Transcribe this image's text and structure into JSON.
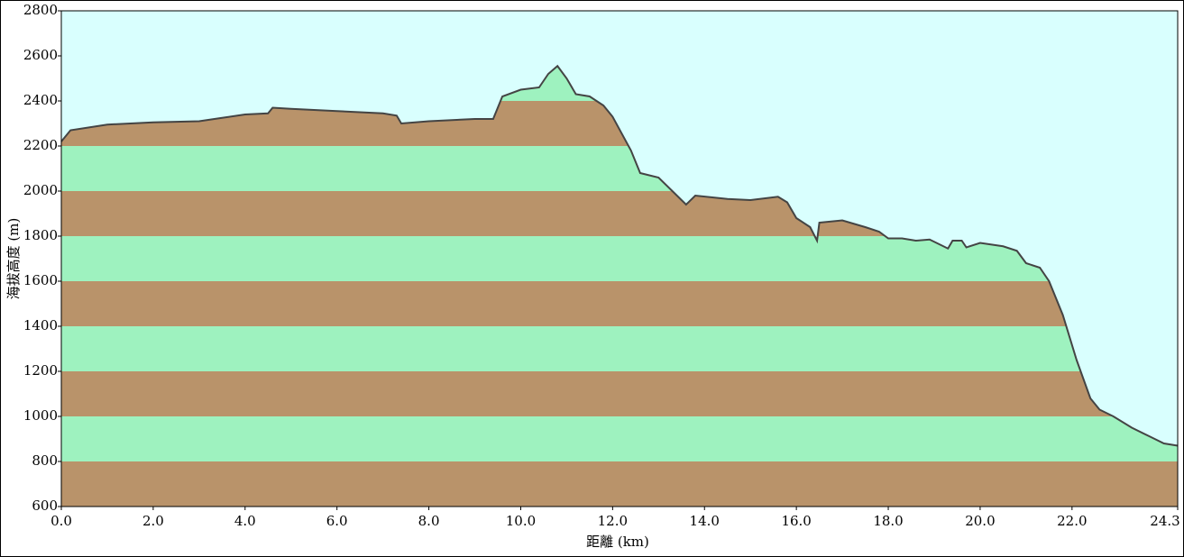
{
  "chart_data": {
    "type": "area",
    "x_label": "距離  (km)",
    "y_label": "海拔高度 (m)",
    "x": [
      0,
      0.2,
      1.0,
      2.0,
      3.0,
      3.5,
      4.0,
      4.5,
      4.6,
      5.0,
      6.0,
      7.0,
      7.3,
      7.4,
      8.0,
      9.0,
      9.4,
      9.6,
      10.0,
      10.4,
      10.6,
      10.8,
      11.0,
      11.2,
      11.5,
      11.8,
      12.0,
      12.4,
      12.6,
      13.0,
      13.3,
      13.6,
      13.8,
      14.5,
      15.0,
      15.6,
      15.8,
      16.0,
      16.3,
      16.45,
      16.5,
      17.0,
      17.5,
      17.8,
      18.0,
      18.3,
      18.6,
      18.9,
      19.3,
      19.4,
      19.6,
      19.7,
      20.0,
      20.5,
      20.8,
      21.0,
      21.3,
      21.5,
      21.8,
      22.1,
      22.4,
      22.6,
      22.9,
      23.3,
      23.7,
      24.0,
      24.3
    ],
    "series": [
      {
        "color": "#444444",
        "values": [
          2220,
          2270,
          2295,
          2305,
          2310,
          2325,
          2340,
          2345,
          2370,
          2365,
          2355,
          2345,
          2335,
          2300,
          2310,
          2320,
          2320,
          2420,
          2450,
          2460,
          2520,
          2555,
          2500,
          2430,
          2420,
          2380,
          2330,
          2180,
          2080,
          2060,
          2000,
          1940,
          1980,
          1965,
          1960,
          1975,
          1950,
          1880,
          1840,
          1780,
          1860,
          1870,
          1840,
          1820,
          1790,
          1790,
          1780,
          1785,
          1745,
          1780,
          1780,
          1750,
          1770,
          1755,
          1735,
          1680,
          1660,
          1600,
          1450,
          1250,
          1080,
          1030,
          1000,
          950,
          910,
          880,
          870
        ]
      }
    ],
    "xlim": [
      0,
      24.3
    ],
    "xticks": [
      {
        "value": 0,
        "label": "0.0"
      },
      {
        "value": 2,
        "label": "2.0"
      },
      {
        "value": 4,
        "label": "4.0"
      },
      {
        "value": 6,
        "label": "6.0"
      },
      {
        "value": 8,
        "label": "8.0"
      },
      {
        "value": 10,
        "label": "10.0"
      },
      {
        "value": 12,
        "label": "12.0"
      },
      {
        "value": 14,
        "label": "14.0"
      },
      {
        "value": 16,
        "label": "16.0"
      },
      {
        "value": 18,
        "label": "18.0"
      },
      {
        "value": 20,
        "label": "20.0"
      },
      {
        "value": 22,
        "label": "22.0"
      },
      24.3
    ],
    "ylim": [
      600,
      2800
    ],
    "yticks": [
      600,
      800,
      1000,
      1200,
      1400,
      1600,
      1800,
      2000,
      2200,
      2400,
      2600,
      2800
    ],
    "band_colors": [
      "#b9936a",
      "#9ef2bf"
    ],
    "background_color": "#d9fffe"
  }
}
